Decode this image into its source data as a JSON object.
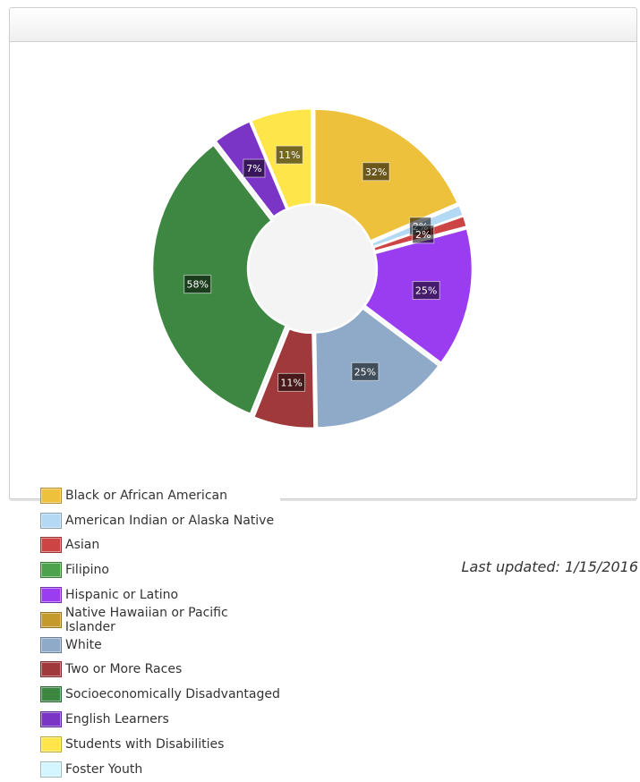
{
  "last_updated": "Last updated: 1/15/2016",
  "chart_data": {
    "type": "pie",
    "variant": "donut",
    "title": "",
    "slices": [
      {
        "name": "Black or African American",
        "value": 32,
        "label": "32%",
        "color": "#eec13c"
      },
      {
        "name": "American Indian or Alaska Native",
        "value": 2,
        "label": "2%",
        "color": "#b4d9f5"
      },
      {
        "name": "Asian",
        "value": 2,
        "label": "2%",
        "color": "#cc4444"
      },
      {
        "name": "Filipino",
        "value": 0,
        "label": "",
        "color": "#4da24d"
      },
      {
        "name": "Hispanic or Latino",
        "value": 25,
        "label": "25%",
        "color": "#9a3df0"
      },
      {
        "name": "Native Hawaiian or Pacific Islander",
        "value": 0,
        "label": "",
        "color": "#c49a2c"
      },
      {
        "name": "White",
        "value": 25,
        "label": "25%",
        "color": "#8eaac8"
      },
      {
        "name": "Two or More Races",
        "value": 11,
        "label": "11%",
        "color": "#a0393b"
      },
      {
        "name": "Socioeconomically Disadvantaged",
        "value": 58,
        "label": "58%",
        "color": "#3e8742"
      },
      {
        "name": "English Learners",
        "value": 7,
        "label": "7%",
        "color": "#7a34c6"
      },
      {
        "name": "Students with Disabilities",
        "value": 11,
        "label": "11%",
        "color": "#fee54a"
      },
      {
        "name": "Foster Youth",
        "value": 0,
        "label": "",
        "color": "#d4f6ff"
      }
    ],
    "legend_position": "bottom-left"
  }
}
